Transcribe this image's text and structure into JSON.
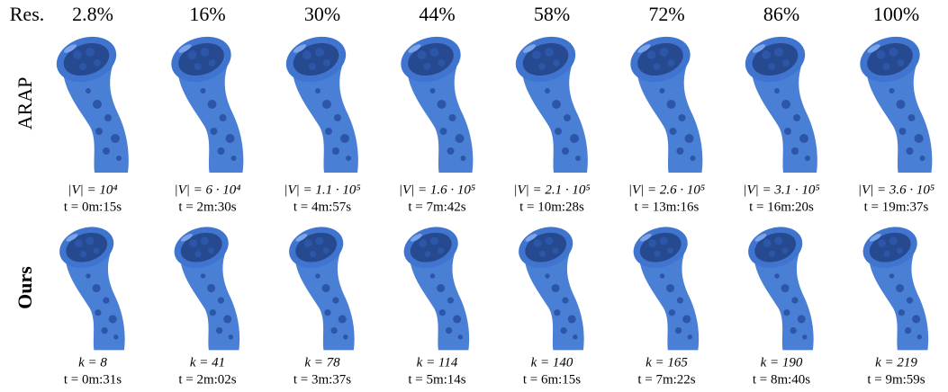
{
  "header": {
    "label": "Res.",
    "columns": [
      "2.8%",
      "16%",
      "30%",
      "44%",
      "58%",
      "72%",
      "86%",
      "100%"
    ]
  },
  "rows": [
    {
      "label": "ARAP",
      "cells": [
        {
          "line1": "|V| = 10⁴",
          "line2": "t = 0m:15s"
        },
        {
          "line1": "|V| = 6 · 10⁴",
          "line2": "t = 2m:30s"
        },
        {
          "line1": "|V| = 1.1 · 10⁵",
          "line2": "t = 4m:57s"
        },
        {
          "line1": "|V| = 1.6 · 10⁵",
          "line2": "t = 7m:42s"
        },
        {
          "line1": "|V| = 2.1 · 10⁵",
          "line2": "t = 10m:28s"
        },
        {
          "line1": "|V| = 2.6 · 10⁵",
          "line2": "t = 13m:16s"
        },
        {
          "line1": "|V| = 3.1 · 10⁵",
          "line2": "t = 16m:20s"
        },
        {
          "line1": "|V| = 3.6 · 10⁵",
          "line2": "t = 19m:37s"
        }
      ]
    },
    {
      "label": "Ours",
      "cells": [
        {
          "line1": "k = 8",
          "line2": "t = 0m:31s"
        },
        {
          "line1": "k = 41",
          "line2": "t = 2m:02s"
        },
        {
          "line1": "k = 78",
          "line2": "t = 3m:37s"
        },
        {
          "line1": "k = 114",
          "line2": "t = 5m:14s"
        },
        {
          "line1": "k = 140",
          "line2": "t = 6m:15s"
        },
        {
          "line1": "k = 165",
          "line2": "t = 7m:22s"
        },
        {
          "line1": "k = 190",
          "line2": "t = 8m:40s"
        },
        {
          "line1": "k = 219",
          "line2": "t = 9m:59s"
        }
      ]
    }
  ]
}
